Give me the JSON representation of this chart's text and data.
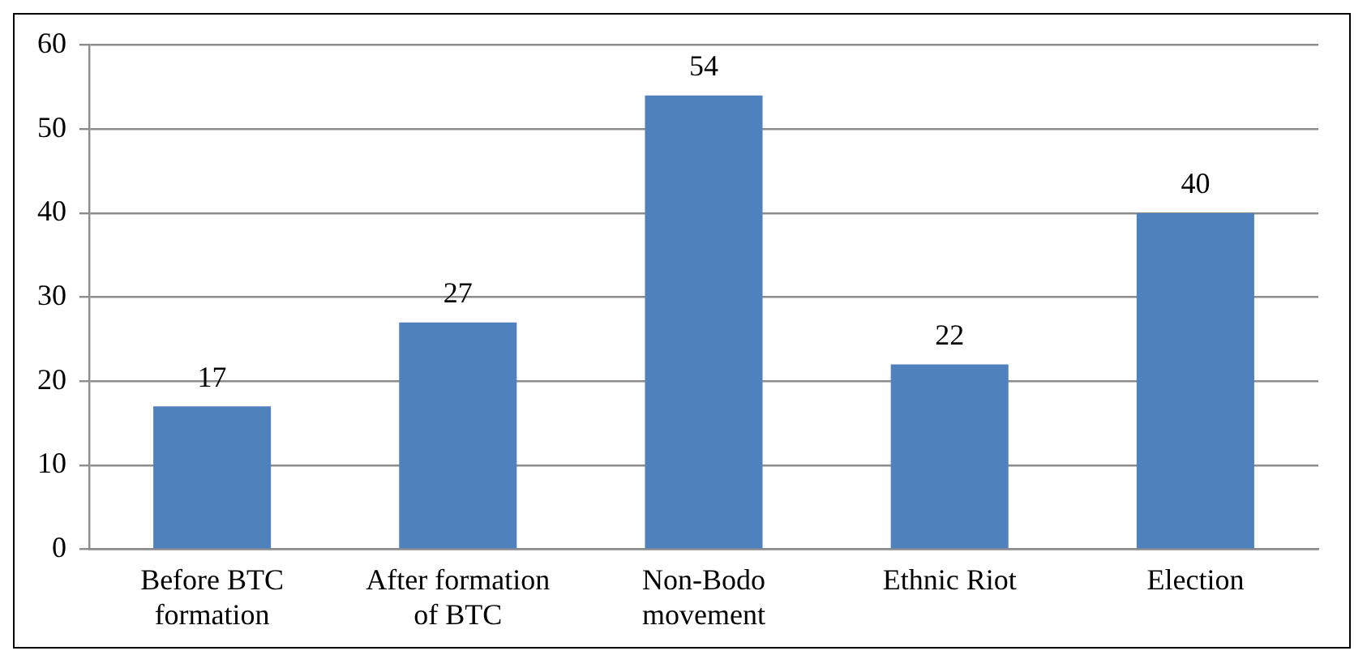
{
  "chart_data": {
    "type": "bar",
    "categories": [
      "Before BTC formation",
      "After formation of BTC",
      "Non-Bodo movement",
      "Ethnic Riot",
      "Election"
    ],
    "values": [
      17,
      27,
      54,
      22,
      40
    ],
    "color": "#4f81bd",
    "ylim": [
      0,
      60
    ],
    "yticks": [
      0,
      10,
      20,
      30,
      40,
      50,
      60
    ],
    "grid": "y",
    "legend": false,
    "data_labels": true
  }
}
